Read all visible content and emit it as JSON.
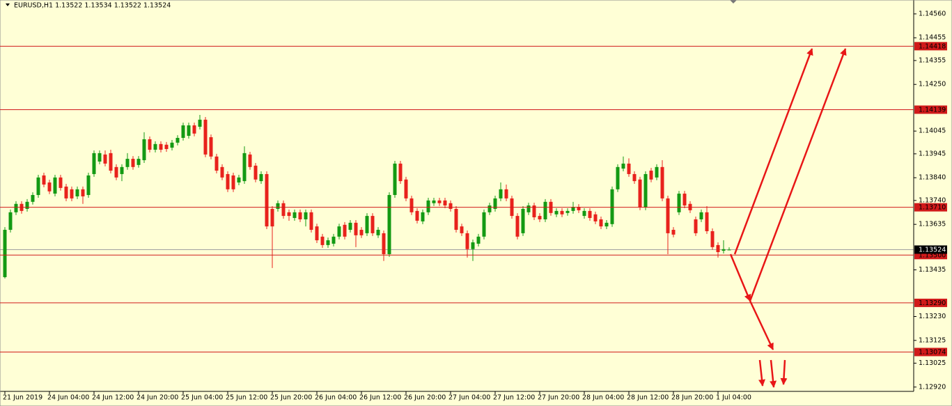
{
  "chart_data": {
    "type": "candlestick",
    "title": "EURUSD,H1  1.13522 1.13534 1.13522 1.13524",
    "background": "#ffffd6",
    "up_color": "#139a13",
    "down_color": "#e8221c",
    "level_color": "#d11a1a",
    "ylim": [
      1.12901,
      1.14621
    ],
    "yticks": [
      {
        "value": 1.1456,
        "label": "1.14560"
      },
      {
        "value": 1.14455,
        "label": "1.14455"
      },
      {
        "value": 1.14355,
        "label": "1.14355"
      },
      {
        "value": 1.1425,
        "label": "1.14250"
      },
      {
        "value": 1.14045,
        "label": "1.14045"
      },
      {
        "value": 1.13945,
        "label": "1.13945"
      },
      {
        "value": 1.1384,
        "label": "1.13840"
      },
      {
        "value": 1.1374,
        "label": "1.13740"
      },
      {
        "value": 1.13635,
        "label": "1.13635"
      },
      {
        "value": 1.13435,
        "label": "1.13435"
      },
      {
        "value": 1.1323,
        "label": "1.13230"
      },
      {
        "value": 1.13125,
        "label": "1.13125"
      },
      {
        "value": 1.13025,
        "label": "1.13025"
      },
      {
        "value": 1.1292,
        "label": "1.12920"
      }
    ],
    "xticks": [
      {
        "value": 0,
        "label": "21 Jun 2019"
      },
      {
        "value": 8,
        "label": "24 Jun 04:00"
      },
      {
        "value": 16,
        "label": "24 Jun 12:00"
      },
      {
        "value": 24,
        "label": "24 Jun 20:00"
      },
      {
        "value": 32,
        "label": "25 Jun 04:00"
      },
      {
        "value": 40,
        "label": "25 Jun 12:00"
      },
      {
        "value": 48,
        "label": "25 Jun 20:00"
      },
      {
        "value": 56,
        "label": "26 Jun 04:00"
      },
      {
        "value": 64,
        "label": "26 Jun 12:00"
      },
      {
        "value": 72,
        "label": "26 Jun 20:00"
      },
      {
        "value": 80,
        "label": "27 Jun 04:00"
      },
      {
        "value": 88,
        "label": "27 Jun 12:00"
      },
      {
        "value": 96,
        "label": "27 Jun 20:00"
      },
      {
        "value": 104,
        "label": "28 Jun 04:00"
      },
      {
        "value": 112,
        "label": "28 Jun 12:00"
      },
      {
        "value": 120,
        "label": "28 Jun 20:00"
      },
      {
        "value": 128,
        "label": "1 Jul 04:00"
      }
    ],
    "levels": [
      1.14418,
      1.14139,
      {
        "value": 1.1371,
        "label": "1.13710"
      },
      {
        "value": 1.135,
        "label": "1.13500"
      },
      {
        "value": 1.1329,
        "label": "1.13290"
      },
      1.13074
    ],
    "last_price": 1.13524,
    "open": [
      1.13403,
      1.13611,
      1.13688,
      1.13725,
      1.13703,
      1.13734,
      1.13764,
      1.1385,
      1.13819,
      1.1377,
      1.13841,
      1.13801,
      1.13789,
      1.13758,
      1.13789,
      1.13764,
      1.13856,
      1.13911,
      1.13942,
      1.13948,
      1.13887,
      1.13856,
      1.13887,
      1.13923,
      1.13896,
      1.13917,
      1.14009,
      1.13963,
      1.13988,
      1.13985,
      1.13972,
      1.13994,
      1.14015,
      1.14024,
      1.1407,
      1.14064,
      1.14095,
      1.14018,
      1.13933,
      1.13887,
      1.13856,
      1.1385,
      1.13819,
      1.13825,
      1.13942,
      1.13893,
      1.13825,
      1.13856,
      1.13703,
      1.13703,
      1.13728,
      1.13688,
      1.13663,
      1.13688,
      1.13657,
      1.13688,
      1.13626,
      1.13581,
      1.13544,
      1.1355,
      1.13581,
      1.13633,
      1.13611,
      1.13642,
      1.13611,
      1.13596,
      1.13672,
      1.13587,
      1.13596,
      1.13504,
      1.13764,
      1.13902,
      1.13832,
      1.13749,
      1.13694,
      1.13648,
      1.13688,
      1.13728,
      1.1374,
      1.1374,
      1.13728,
      1.13703,
      1.13626,
      1.13596,
      1.13526,
      1.1355,
      1.13581,
      1.13688,
      1.13703,
      1.13749,
      1.13789,
      1.13749,
      1.13672,
      1.13596,
      1.13688,
      1.13718,
      1.13672,
      1.13657,
      1.13734,
      1.13679,
      1.13694,
      1.13685,
      1.13694,
      1.13712,
      1.13672,
      1.13694,
      1.13679,
      1.13657,
      1.13626,
      1.13636,
      1.13789,
      1.1388,
      1.13902,
      1.13856,
      1.13832,
      1.13709,
      1.13871,
      1.13841,
      1.13887,
      1.13749,
      1.13611,
      1.13688,
      1.1377,
      1.13725,
      1.13657,
      1.13657,
      1.13688,
      1.13605,
      1.13544,
      1.13519,
      1.13522
    ],
    "high": [
      1.13623,
      1.137,
      1.13737,
      1.13737,
      1.13746,
      1.13776,
      1.13853,
      1.13862,
      1.13831,
      1.13853,
      1.13853,
      1.13813,
      1.13801,
      1.13801,
      1.13801,
      1.13862,
      1.1396,
      1.1396,
      1.1396,
      1.13963,
      1.13899,
      1.13899,
      1.13948,
      1.13935,
      1.13935,
      1.1404,
      1.14021,
      1.14,
      1.14,
      1.13997,
      1.14006,
      1.14027,
      1.14082,
      1.14082,
      1.14082,
      1.14116,
      1.14107,
      1.1403,
      1.13945,
      1.13899,
      1.13868,
      1.13862,
      1.13853,
      1.13978,
      1.13954,
      1.13905,
      1.13868,
      1.13868,
      1.13715,
      1.1374,
      1.1374,
      1.137,
      1.137,
      1.137,
      1.137,
      1.137,
      1.13638,
      1.13593,
      1.13577,
      1.13593,
      1.13638,
      1.13645,
      1.13654,
      1.13654,
      1.13623,
      1.13684,
      1.13684,
      1.13623,
      1.13608,
      1.13776,
      1.13914,
      1.13914,
      1.13844,
      1.13761,
      1.13706,
      1.137,
      1.13752,
      1.13752,
      1.13752,
      1.13752,
      1.1374,
      1.13715,
      1.13638,
      1.13608,
      1.13568,
      1.13593,
      1.137,
      1.1373,
      1.13761,
      1.13819,
      1.1381,
      1.13761,
      1.13684,
      1.13715,
      1.1373,
      1.1373,
      1.13684,
      1.13746,
      1.13746,
      1.13706,
      1.13706,
      1.13706,
      1.13734,
      1.13724,
      1.13706,
      1.13706,
      1.13691,
      1.13669,
      1.13654,
      1.13801,
      1.13899,
      1.13933,
      1.13925,
      1.13868,
      1.13844,
      1.13868,
      1.13883,
      1.13899,
      1.13917,
      1.13761,
      1.13623,
      1.13782,
      1.13782,
      1.13737,
      1.13669,
      1.137,
      1.13715,
      1.13617,
      1.13556,
      1.13565,
      1.13534
    ],
    "low": [
      1.13397,
      1.13599,
      1.13676,
      1.13682,
      1.13691,
      1.13722,
      1.13752,
      1.13798,
      1.13768,
      1.13758,
      1.13783,
      1.13737,
      1.13737,
      1.13746,
      1.13725,
      1.13752,
      1.13844,
      1.13899,
      1.1389,
      1.13859,
      1.13829,
      1.13825,
      1.13875,
      1.13875,
      1.13884,
      1.13905,
      1.13951,
      1.13951,
      1.13951,
      1.13954,
      1.1396,
      1.13982,
      1.14003,
      1.14012,
      1.14022,
      1.14052,
      1.1393,
      1.13921,
      1.13859,
      1.13829,
      1.13777,
      1.13777,
      1.13807,
      1.13813,
      1.13875,
      1.1382,
      1.13813,
      1.13614,
      1.13443,
      1.13691,
      1.1366,
      1.13651,
      1.13651,
      1.13645,
      1.13626,
      1.13599,
      1.13553,
      1.13532,
      1.13532,
      1.13538,
      1.13569,
      1.13569,
      1.13599,
      1.13535,
      1.13575,
      1.13584,
      1.13584,
      1.13575,
      1.13474,
      1.13492,
      1.13752,
      1.13813,
      1.13737,
      1.13676,
      1.13639,
      1.13636,
      1.13676,
      1.13716,
      1.13716,
      1.13706,
      1.13691,
      1.13599,
      1.13584,
      1.13489,
      1.13474,
      1.13538,
      1.13569,
      1.13676,
      1.13691,
      1.13737,
      1.13737,
      1.1366,
      1.13569,
      1.13584,
      1.13676,
      1.13654,
      1.13645,
      1.13645,
      1.13673,
      1.13667,
      1.13667,
      1.13673,
      1.13682,
      1.13685,
      1.1366,
      1.13651,
      1.13636,
      1.13614,
      1.13614,
      1.13624,
      1.13777,
      1.13868,
      1.13844,
      1.13813,
      1.13697,
      1.13697,
      1.1382,
      1.13829,
      1.13737,
      1.13504,
      1.13578,
      1.13676,
      1.13706,
      1.13685,
      1.13584,
      1.13645,
      1.13593,
      1.13523,
      1.13489,
      1.13507,
      1.13522
    ],
    "close": [
      1.13611,
      1.13688,
      1.13725,
      1.13694,
      1.13734,
      1.13764,
      1.13841,
      1.1381,
      1.1378,
      1.13841,
      1.13795,
      1.13749,
      1.13749,
      1.13789,
      1.13758,
      1.1385,
      1.13948,
      1.13948,
      1.13902,
      1.13871,
      1.13841,
      1.13887,
      1.13923,
      1.13887,
      1.13923,
      1.14009,
      1.13963,
      1.13988,
      1.13963,
      1.13966,
      1.13994,
      1.14015,
      1.1407,
      1.1407,
      1.14034,
      1.14095,
      1.13942,
      1.13933,
      1.13871,
      1.13841,
      1.13789,
      1.13789,
      1.13841,
      1.13948,
      1.13887,
      1.13832,
      1.13856,
      1.13626,
      1.13626,
      1.13728,
      1.13672,
      1.13672,
      1.13688,
      1.13657,
      1.13688,
      1.13611,
      1.13565,
      1.13544,
      1.13565,
      1.13581,
      1.13626,
      1.13581,
      1.13642,
      1.13587,
      1.13587,
      1.13672,
      1.13596,
      1.13611,
      1.13504,
      1.13764,
      1.13902,
      1.13825,
      1.13749,
      1.13688,
      1.13651,
      1.13688,
      1.1374,
      1.1374,
      1.13728,
      1.13718,
      1.13703,
      1.13611,
      1.13596,
      1.13526,
      1.13556,
      1.13581,
      1.13688,
      1.13718,
      1.13749,
      1.13789,
      1.13749,
      1.13672,
      1.13581,
      1.13703,
      1.13718,
      1.13666,
      1.13657,
      1.13734,
      1.13685,
      1.13694,
      1.13679,
      1.13694,
      1.13712,
      1.13697,
      1.13694,
      1.13663,
      1.13648,
      1.13626,
      1.13642,
      1.13789,
      1.13887,
      1.13902,
      1.13856,
      1.13825,
      1.13709,
      1.13856,
      1.13832,
      1.13887,
      1.13749,
      1.13596,
      1.1359,
      1.1377,
      1.13718,
      1.13697,
      1.13596,
      1.13688,
      1.13605,
      1.13535,
      1.13513,
      1.13526,
      1.13524
    ]
  }
}
